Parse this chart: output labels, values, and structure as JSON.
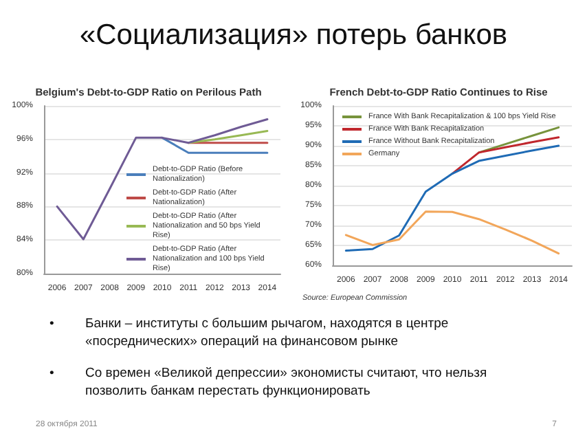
{
  "chart_data": [
    {
      "type": "other",
      "title": "«Социализация» потерь банков"
    },
    {
      "type": "line",
      "title": "Belgium's Debt-to-GDP Ratio on Perilous Path",
      "categories": [
        "2006",
        "2007",
        "2008",
        "2009",
        "2010",
        "2011",
        "2012",
        "2013",
        "2014"
      ],
      "series": [
        {
          "name": "Debt-to-GDP Ratio (Before Nationalization)",
          "color": "#4a7ebb",
          "values": [
            null,
            null,
            null,
            null,
            96.2,
            94.4,
            94.4,
            94.4,
            94.4
          ]
        },
        {
          "name": "Debt-to-GDP Ratio (After Nationalization)",
          "color": "#be4b48",
          "values": [
            null,
            null,
            null,
            null,
            null,
            95.6,
            95.6,
            95.6,
            95.6
          ]
        },
        {
          "name": "Debt-to-GDP Ratio (After Nationalization and 50 bps Yield Rise)",
          "color": "#98b954",
          "values": [
            null,
            null,
            null,
            null,
            null,
            95.6,
            96.0,
            96.5,
            97.0
          ]
        },
        {
          "name": "Debt-to-GDP Ratio (After Nationalization and 100 bps Yield Rise)",
          "color": "#6f5b95",
          "values": [
            88.0,
            84.1,
            90.1,
            96.2,
            96.2,
            95.6,
            96.5,
            97.5,
            98.4
          ]
        }
      ],
      "ylim": [
        80,
        100
      ],
      "yticks": [
        {
          "value": 80,
          "label": "80%"
        },
        {
          "value": 84,
          "label": "84%"
        },
        {
          "value": 88,
          "label": "88%"
        },
        {
          "value": 92,
          "label": "92%"
        },
        {
          "value": 96,
          "label": "96%"
        },
        {
          "value": 100,
          "label": "100%"
        }
      ],
      "grid": "y",
      "legend": "right",
      "marker": "none"
    },
    {
      "type": "line",
      "title": "French Debt-to-GDP Ratio Continues to Rise",
      "categories": [
        "2006",
        "2007",
        "2008",
        "2009",
        "2010",
        "2011",
        "2012",
        "2013",
        "2014"
      ],
      "series": [
        {
          "name": "France With Bank Recapitalization & 100 bps Yield Rise",
          "color": "#77933c",
          "values": [
            null,
            null,
            null,
            null,
            null,
            88.3,
            90.4,
            92.5,
            94.6
          ]
        },
        {
          "name": "France With Bank Recapitalization",
          "color": "#c0272d",
          "values": [
            null,
            null,
            null,
            null,
            83.0,
            88.3,
            89.6,
            90.9,
            92.1
          ]
        },
        {
          "name": "France Without Bank Recapitalization",
          "color": "#1f6bb5",
          "values": [
            63.7,
            64.1,
            67.5,
            78.5,
            83.0,
            86.2,
            87.5,
            88.8,
            90.0
          ]
        },
        {
          "name": "Germany",
          "color": "#f2a65a",
          "values": [
            67.6,
            65.1,
            66.5,
            73.5,
            73.4,
            71.6,
            69.0,
            66.2,
            63.0
          ]
        }
      ],
      "ylim": [
        60,
        100
      ],
      "yticks": [
        {
          "value": 60,
          "label": "60%"
        },
        {
          "value": 65,
          "label": "65%"
        },
        {
          "value": 70,
          "label": "70%"
        },
        {
          "value": 75,
          "label": "75%"
        },
        {
          "value": 80,
          "label": "80%"
        },
        {
          "value": 85,
          "label": "85%"
        },
        {
          "value": 90,
          "label": "90%"
        },
        {
          "value": 95,
          "label": "95%"
        },
        {
          "value": 100,
          "label": "100%"
        }
      ],
      "grid": "y",
      "legend": "top left",
      "marker": "none",
      "annotations": [
        "Source: European Commission"
      ]
    },
    {
      "type": "other",
      "annotations": [
        "•",
        "Банки – институты с большим рычагом, находятся в центре «посреднических» операций на финансовом рынке",
        "•",
        "Со времен «Великой депрессии» экономисты считают,  что нельзя позволить банкам перестать функционировать",
        "28 октября 2011",
        "7"
      ]
    }
  ]
}
